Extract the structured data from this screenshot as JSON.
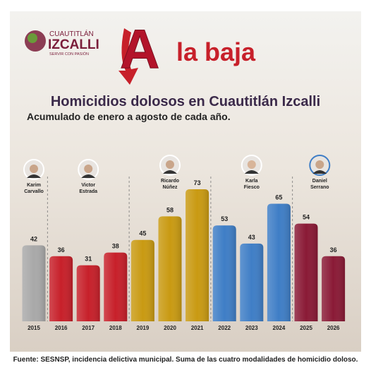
{
  "header": {
    "logo_top": "CUAUTITLÁN",
    "logo_main": "IZCALLI",
    "logo_motto": "SERVIR CON PASIÓN",
    "banner_letter": "A",
    "banner_text": "la baja"
  },
  "chart_data": {
    "type": "bar",
    "title": "Homicidios dolosos en Cuautitlán Izcalli",
    "subtitle": "Acumulado de enero a agosto de cada año.",
    "categories": [
      "2015",
      "2016",
      "2017",
      "2018",
      "2019",
      "2020",
      "2021",
      "2022",
      "2023",
      "2024",
      "2025",
      "2026"
    ],
    "values": [
      42,
      36,
      31,
      38,
      45,
      58,
      73,
      53,
      43,
      65,
      54,
      36
    ],
    "colors": [
      "#a9a9a9",
      "#c7202a",
      "#c7202a",
      "#c7202a",
      "#c99a12",
      "#c99a12",
      "#c99a12",
      "#3f7ec6",
      "#3f7ec6",
      "#3f7ec6",
      "#8a1a36",
      "#8a1a36"
    ],
    "periods": [
      [
        "Karim",
        "Carvallo"
      ],
      [
        "Victor",
        "Estrada"
      ],
      [
        "Ricardo",
        "Núñez"
      ],
      [
        "Karla",
        "Fiesco"
      ],
      [
        "Daniel",
        "Serrano"
      ]
    ],
    "source": "Fuente: SESNSP, incidencia delictiva municipal. Suma de las cuatro modalidades de homicidio doloso."
  }
}
